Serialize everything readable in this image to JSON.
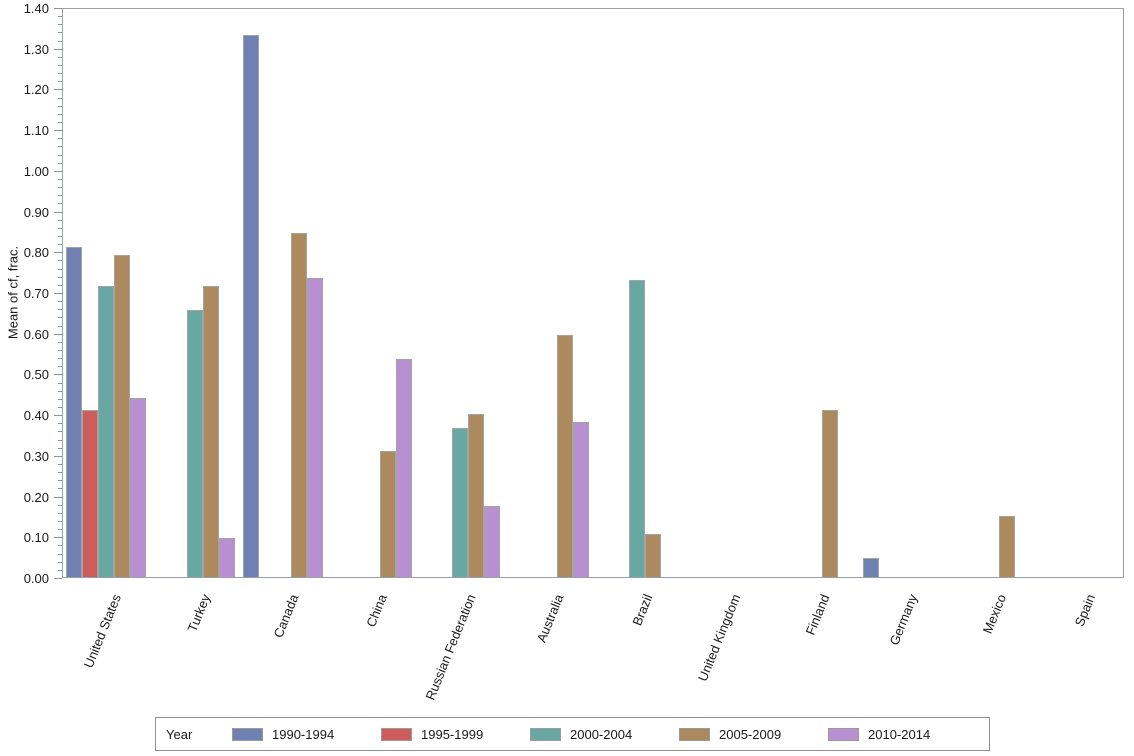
{
  "chart_data": {
    "type": "bar",
    "title": "",
    "xlabel": "",
    "ylabel": "Mean of cf, frac.",
    "ylim": [
      0,
      1.4
    ],
    "y_major_tick": 0.1,
    "y_minor_tick": 0.02,
    "y_tick_format_decimals": 2,
    "grid": false,
    "legend_position": "bottom",
    "legend_title": "Year",
    "categories": [
      "United States",
      "Turkey",
      "Canada",
      "China",
      "Russian Federation",
      "Australia",
      "Brazil",
      "United Kingdom",
      "Finland",
      "Germany",
      "Mexico",
      "Spain"
    ],
    "series": [
      {
        "name": "1990-1994",
        "color": "#6f80b2",
        "values": [
          0.81,
          null,
          1.33,
          null,
          null,
          null,
          null,
          null,
          null,
          0.047,
          null,
          null
        ]
      },
      {
        "name": "1995-1999",
        "color": "#cd5c5c",
        "values": [
          0.41,
          null,
          null,
          null,
          null,
          null,
          null,
          null,
          null,
          null,
          null,
          null
        ]
      },
      {
        "name": "2000-2004",
        "color": "#69a8a2",
        "values": [
          0.715,
          0.655,
          null,
          null,
          0.365,
          null,
          0.73,
          null,
          null,
          null,
          null,
          null
        ]
      },
      {
        "name": "2005-2009",
        "color": "#ad8a5e",
        "values": [
          0.79,
          0.715,
          0.845,
          0.31,
          0.4,
          0.595,
          0.105,
          null,
          0.41,
          null,
          0.15,
          null
        ]
      },
      {
        "name": "2010-2014",
        "color": "#b88fd0",
        "values": [
          0.44,
          0.095,
          0.735,
          0.535,
          0.175,
          0.38,
          null,
          null,
          null,
          null,
          null,
          null
        ]
      }
    ],
    "bar_border_color": "#a4a4a4",
    "axis_color": "#99a0a7"
  }
}
